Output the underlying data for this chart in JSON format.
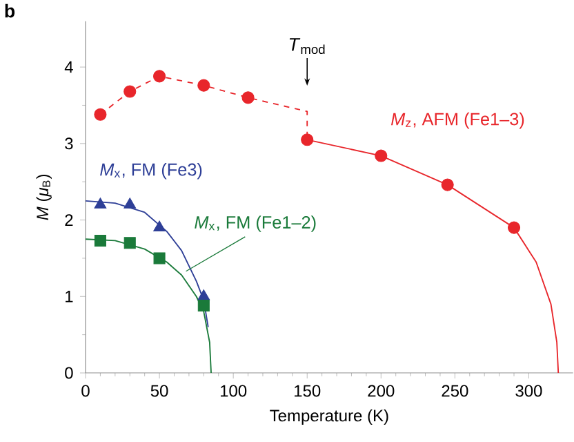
{
  "chart_data": {
    "type": "scatter",
    "xlabel": "Temperature (K)",
    "ylabel": "*M* (*μ*$_{B}$)",
    "xlim": [
      0,
      330
    ],
    "ylim": [
      0,
      4.6
    ],
    "xticks": [
      0,
      50,
      100,
      150,
      200,
      250,
      300
    ],
    "yticks": [
      0,
      1,
      2,
      3,
      4
    ],
    "grid": false,
    "legend": false,
    "annotations": [
      "**b**",
      "*T*$_{mod}$"
    ],
    "series": [
      {
        "type": "line",
        "color": "#e8262b",
        "line_style": "dashed",
        "marker": "none",
        "x": [
          10,
          30,
          50,
          80,
          110,
          150,
          150
        ],
        "values": [
          3.38,
          3.68,
          3.88,
          3.76,
          3.6,
          3.42,
          3.05
        ]
      },
      {
        "type": "line",
        "color": "#e8262b",
        "line_style": "solid",
        "marker": "none",
        "x": [
          150,
          200,
          245,
          290,
          305,
          315,
          319,
          320
        ],
        "values": [
          3.05,
          2.84,
          2.46,
          1.9,
          1.45,
          0.9,
          0.4,
          0
        ]
      },
      {
        "type": "line",
        "color": "#2e3f97",
        "line_style": "solid",
        "marker": "none",
        "x": [
          0,
          20,
          40,
          55,
          65,
          75,
          80,
          83
        ],
        "values": [
          2.25,
          2.22,
          2.1,
          1.85,
          1.6,
          1.2,
          0.95,
          0.6
        ]
      },
      {
        "type": "line",
        "color": "#1a7a3a",
        "line_style": "solid",
        "marker": "none",
        "x": [
          0,
          20,
          40,
          55,
          65,
          75,
          80,
          84,
          85
        ],
        "values": [
          1.75,
          1.73,
          1.62,
          1.45,
          1.28,
          1.0,
          0.8,
          0.4,
          0
        ]
      },
      {
        "name": "*M*$_{z}$, AFM (Fe1–3)",
        "color": "#e8262b",
        "marker": "circle",
        "x": [
          10,
          30,
          50,
          80,
          110,
          150,
          200,
          245,
          290
        ],
        "values": [
          3.38,
          3.68,
          3.88,
          3.76,
          3.6,
          3.05,
          2.84,
          2.46,
          1.9
        ]
      },
      {
        "name": "*M*$_{x}$, FM (Fe3)",
        "color": "#2e3f97",
        "marker": "triangle",
        "x": [
          10,
          30,
          50,
          80
        ],
        "values": [
          2.2,
          2.2,
          1.9,
          1.0
        ]
      },
      {
        "name": "*M*$_{x}$, FM (Fe1–2)",
        "color": "#1a7a3a",
        "marker": "square",
        "x": [
          10,
          30,
          50,
          80
        ],
        "values": [
          1.73,
          1.7,
          1.5,
          0.88
        ]
      }
    ]
  }
}
